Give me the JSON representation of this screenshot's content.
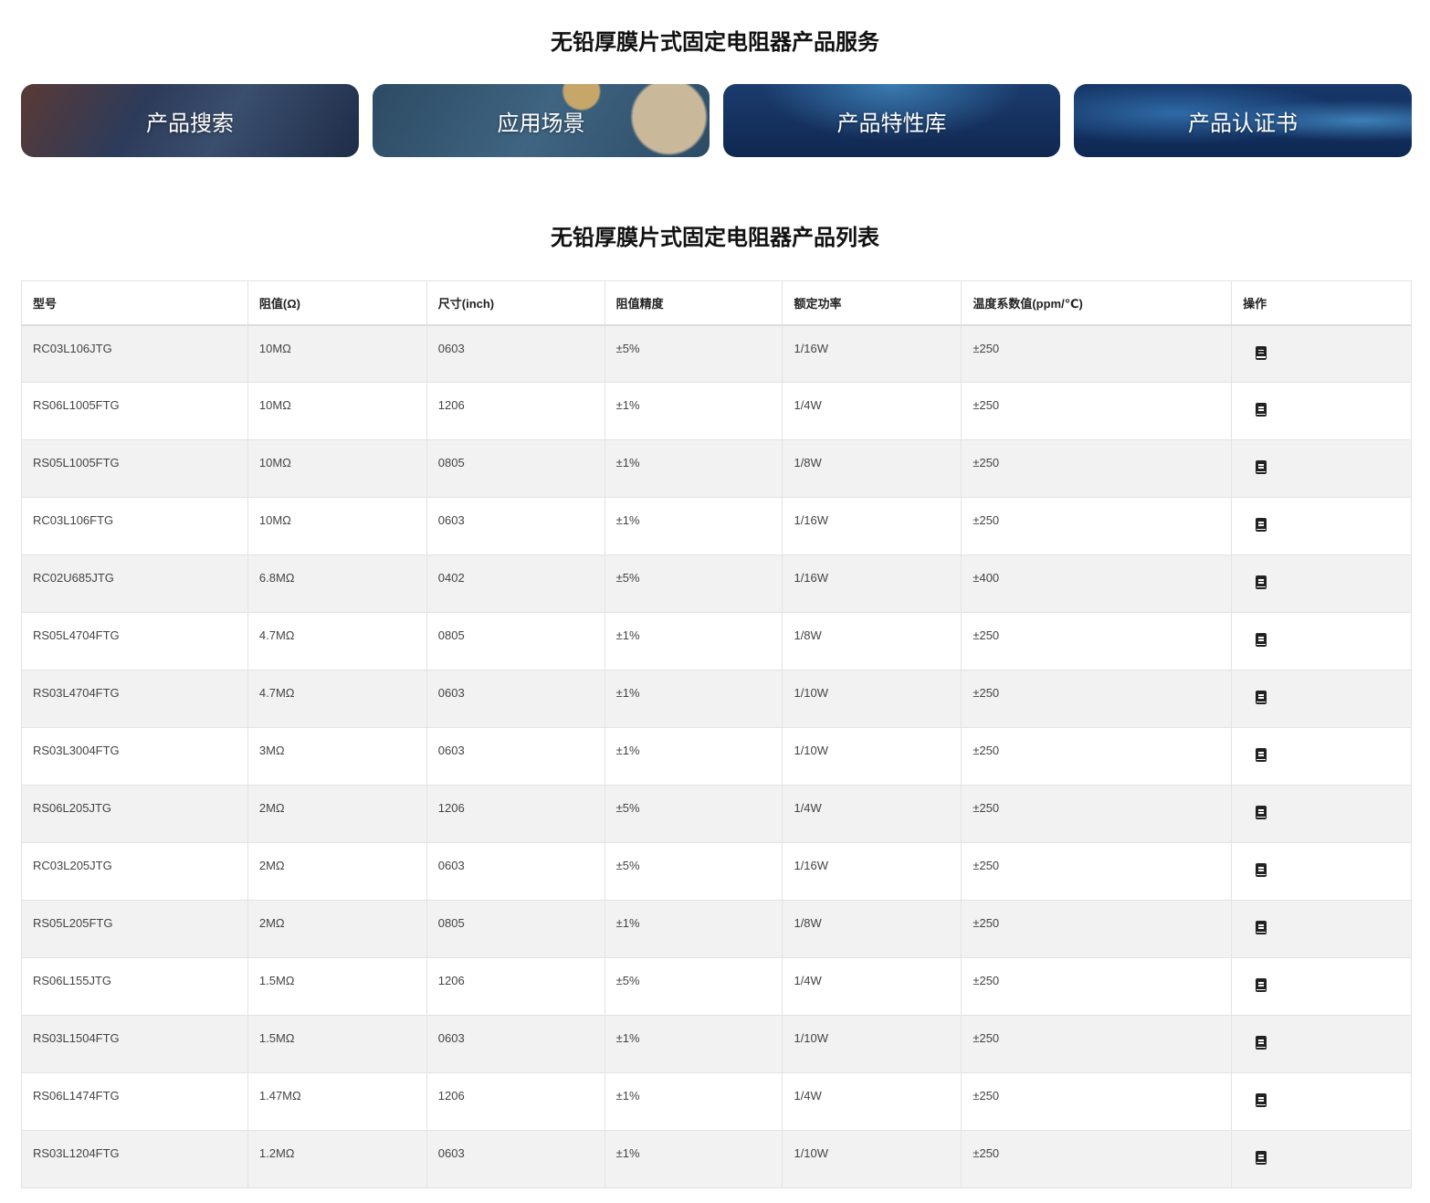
{
  "services": {
    "title": "无铅厚膜片式固定电阻器产品服务",
    "cards": [
      {
        "label": "产品搜索"
      },
      {
        "label": "应用场景"
      },
      {
        "label": "产品特性库"
      },
      {
        "label": "产品认证书"
      }
    ]
  },
  "list": {
    "title": "无铅厚膜片式固定电阻器产品列表",
    "headers": [
      "型号",
      "阻值(Ω)",
      "尺寸(inch)",
      "阻值精度",
      "额定功率",
      "温度系数值(ppm/℃)",
      "操作"
    ],
    "action_icon": "book-icon",
    "rows": [
      [
        "RC03L106JTG",
        "10MΩ",
        "0603",
        "±5%",
        "1/16W",
        "±250"
      ],
      [
        "RS06L1005FTG",
        "10MΩ",
        "1206",
        "±1%",
        "1/4W",
        "±250"
      ],
      [
        "RS05L1005FTG",
        "10MΩ",
        "0805",
        "±1%",
        "1/8W",
        "±250"
      ],
      [
        "RC03L106FTG",
        "10MΩ",
        "0603",
        "±1%",
        "1/16W",
        "±250"
      ],
      [
        "RC02U685JTG",
        "6.8MΩ",
        "0402",
        "±5%",
        "1/16W",
        "±400"
      ],
      [
        "RS05L4704FTG",
        "4.7MΩ",
        "0805",
        "±1%",
        "1/8W",
        "±250"
      ],
      [
        "RS03L4704FTG",
        "4.7MΩ",
        "0603",
        "±1%",
        "1/10W",
        "±250"
      ],
      [
        "RS03L3004FTG",
        "3MΩ",
        "0603",
        "±1%",
        "1/10W",
        "±250"
      ],
      [
        "RS06L205JTG",
        "2MΩ",
        "1206",
        "±5%",
        "1/4W",
        "±250"
      ],
      [
        "RC03L205JTG",
        "2MΩ",
        "0603",
        "±5%",
        "1/16W",
        "±250"
      ],
      [
        "RS05L205FTG",
        "2MΩ",
        "0805",
        "±1%",
        "1/8W",
        "±250"
      ],
      [
        "RS06L155JTG",
        "1.5MΩ",
        "1206",
        "±5%",
        "1/4W",
        "±250"
      ],
      [
        "RS03L1504FTG",
        "1.5MΩ",
        "0603",
        "±1%",
        "1/10W",
        "±250"
      ],
      [
        "RS06L1474FTG",
        "1.47MΩ",
        "1206",
        "±1%",
        "1/4W",
        "±250"
      ],
      [
        "RS03L1204FTG",
        "1.2MΩ",
        "0603",
        "±1%",
        "1/10W",
        "±250"
      ]
    ]
  }
}
